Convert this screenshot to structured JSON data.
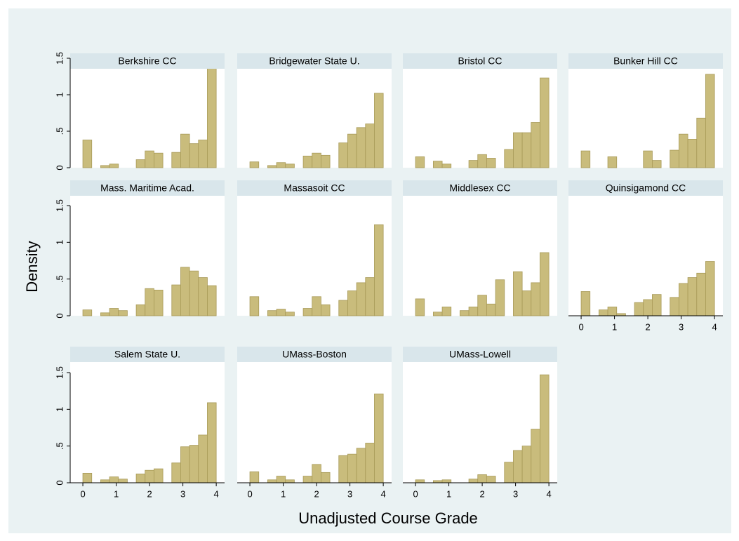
{
  "chart_data": {
    "type": "histogram",
    "y_label": "Density",
    "x_label": "Unadjusted Course Grade",
    "xlim": [
      -0.38,
      4.25
    ],
    "xticks": [
      0,
      1,
      2,
      3,
      4
    ],
    "ylim": [
      0,
      1.5
    ],
    "yticks": [
      0,
      {
        "value": 0.5,
        "label": ".5"
      },
      1,
      1.5
    ],
    "color": "#c9bc7c",
    "bins": [
      0,
      0.2667,
      0.5333,
      0.8,
      1.0667,
      1.3333,
      1.6,
      1.8667,
      2.1333,
      2.4,
      2.6667,
      2.9333,
      3.2,
      3.4667,
      3.7333,
      4
    ],
    "panels": [
      {
        "title": "Berkshire CC",
        "values": [
          0.38,
          0,
          0.03,
          0.05,
          0,
          0,
          0.11,
          0.23,
          0.2,
          0,
          0.21,
          0.46,
          0.33,
          0.38,
          1.37
        ]
      },
      {
        "title": "Bridgewater State U.",
        "values": [
          0.08,
          0,
          0.03,
          0.07,
          0.05,
          0,
          0.16,
          0.2,
          0.17,
          0,
          0.34,
          0.46,
          0.55,
          0.6,
          1.02
        ]
      },
      {
        "title": "Bristol CC",
        "values": [
          0.15,
          0,
          0.09,
          0.05,
          0,
          0,
          0.1,
          0.18,
          0.13,
          0,
          0.25,
          0.48,
          0.48,
          0.62,
          1.23
        ]
      },
      {
        "title": "Bunker Hill CC",
        "values": [
          0.23,
          0,
          0,
          0.15,
          0,
          0,
          0,
          0.23,
          0.1,
          0,
          0.24,
          0.46,
          0.39,
          0.68,
          1.28
        ]
      },
      {
        "title": "Mass. Maritime Acad.",
        "values": [
          0.08,
          0,
          0.04,
          0.1,
          0.07,
          0,
          0.15,
          0.37,
          0.35,
          0,
          0.42,
          0.66,
          0.61,
          0.52,
          0.41
        ]
      },
      {
        "title": "Massasoit CC",
        "values": [
          0.26,
          0,
          0.07,
          0.09,
          0.05,
          0,
          0.1,
          0.26,
          0.15,
          0,
          0.21,
          0.34,
          0.45,
          0.52,
          1.24
        ]
      },
      {
        "title": "Middlesex CC",
        "values": [
          0.23,
          0,
          0.05,
          0.12,
          0,
          0.07,
          0.12,
          0.28,
          0.16,
          0.49,
          0,
          0.6,
          0.34,
          0.45,
          0.86
        ]
      },
      {
        "title": "Quinsigamond CC",
        "values": [
          0.33,
          0,
          0.08,
          0.12,
          0.03,
          0,
          0.18,
          0.22,
          0.29,
          0,
          0.25,
          0.44,
          0.52,
          0.58,
          0.74
        ]
      },
      {
        "title": "Salem State U.",
        "values": [
          0.13,
          0,
          0.04,
          0.08,
          0.05,
          0,
          0.12,
          0.17,
          0.19,
          0,
          0.27,
          0.49,
          0.51,
          0.65,
          1.09
        ]
      },
      {
        "title": "UMass-Boston",
        "values": [
          0.15,
          0,
          0.04,
          0.09,
          0.04,
          0,
          0.09,
          0.25,
          0.14,
          0,
          0.37,
          0.39,
          0.47,
          0.54,
          1.21
        ]
      },
      {
        "title": "UMass-Lowell",
        "values": [
          0.04,
          0,
          0.03,
          0.04,
          0,
          0,
          0.05,
          0.11,
          0.09,
          0,
          0.28,
          0.44,
          0.5,
          0.73,
          1.47
        ]
      }
    ]
  }
}
